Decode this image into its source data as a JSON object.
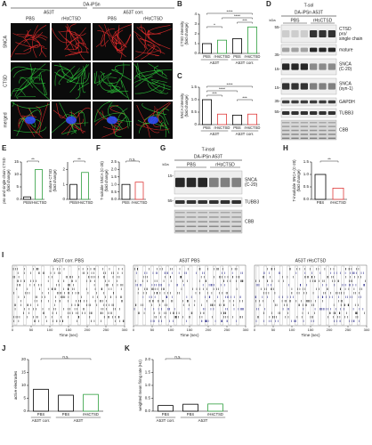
{
  "panel_a": {
    "letter": "A",
    "title": "DA-iPSn",
    "groups": [
      "A53T",
      "A53T corr."
    ],
    "columns": [
      "PBS",
      "rHsCTSD",
      "PBS",
      "rHsCTSD"
    ],
    "rows": [
      "SNCA",
      "CTSD",
      "merged"
    ]
  },
  "panel_b": {
    "letter": "B",
    "ylabel": [
      "CTSD intensity",
      "(fold change)"
    ],
    "ylim": [
      0,
      4
    ],
    "yticks": [
      0,
      1,
      2,
      3,
      4
    ],
    "categories": [
      "PBS",
      "rHsCTSD",
      "PBS",
      "rHsCTSD"
    ],
    "groups": [
      "A53T",
      "A53T corr."
    ],
    "values": [
      1.0,
      1.35,
      1.5,
      2.7
    ],
    "colors": [
      "#000000",
      "#2e9e3e",
      "#000000",
      "#2e9e3e"
    ],
    "significance": [
      "*",
      "****",
      "****",
      "***"
    ]
  },
  "panel_c": {
    "letter": "C",
    "ylabel": [
      "SNCA intensity",
      "(fold change)"
    ],
    "ylim": [
      0,
      1.5
    ],
    "yticks": [
      0,
      0.5,
      {
        "value": 1,
        "label": "1.0"
      },
      1.5
    ],
    "categories": [
      "PBS",
      "rHsCTSD",
      "PBS",
      "rHsCTSD"
    ],
    "groups": [
      "A53T",
      "A53T corr."
    ],
    "values": [
      1.0,
      0.42,
      0.38,
      0.42
    ],
    "colors": [
      "#000000",
      "#e03a3a",
      "#000000",
      "#e03a3a"
    ],
    "significance": [
      "****",
      "****",
      "***",
      "***"
    ]
  },
  "panel_d": {
    "letter": "D",
    "title": "T-sol",
    "subtitle": "DA-iPSn A53T",
    "columns": [
      "PBS",
      "rHsCTSD"
    ],
    "unit": "kDa",
    "markers": [
      "55-",
      "35-",
      "15-",
      "15-",
      "35-",
      "55-"
    ],
    "bands": [
      [
        "CTSD",
        "pro/",
        "single chain"
      ],
      [
        "mature"
      ],
      [
        "SNCA",
        "(C-20)"
      ],
      [
        "SNCA",
        "(syn-1)"
      ],
      [
        "GAPDH"
      ],
      [
        "TUBB3"
      ],
      [
        "CBB"
      ]
    ]
  },
  "panel_e": {
    "letter": "E",
    "charts": [
      {
        "ylabel": [
          "pro and single chain CTSD",
          "(fold change)"
        ],
        "ylim": [
          0,
          15
        ],
        "yticks": [
          0,
          5,
          10,
          15
        ],
        "categories": [
          "PBS",
          "rHsCTSD"
        ],
        "values": [
          1.0,
          12
        ],
        "colors": [
          "#000000",
          "#2e9e3e"
        ],
        "significance": [
          "**"
        ]
      },
      {
        "ylabel": [
          "mature CTSD",
          "(fold change)"
        ],
        "ylim": [
          0,
          2.5
        ],
        "yticks": [
          0,
          1,
          2
        ],
        "categories": [
          "PBS",
          "rHsCTSD"
        ],
        "values": [
          1.0,
          1.8
        ],
        "colors": [
          "#000000",
          "#2e9e3e"
        ],
        "significance": [
          "**"
        ]
      }
    ]
  },
  "panel_f": {
    "letter": "F",
    "ylabel": [
      "T-soluble SNCA (C-20)",
      "(fold change)"
    ],
    "ylim": [
      0,
      2.5
    ],
    "yticks": [
      {
        "value": 0,
        "label": "0.0"
      },
      0.5,
      {
        "value": 1,
        "label": "1.0"
      },
      1.5,
      {
        "value": 2,
        "label": "2.0"
      },
      2.5
    ],
    "categories": [
      "PBS",
      "rHsCTSD"
    ],
    "values": [
      1.0,
      1.15
    ],
    "colors": [
      "#000000",
      "#e03a3a"
    ],
    "significance": [
      "n.s."
    ]
  },
  "panel_g": {
    "letter": "G",
    "title": "T-insol",
    "subtitle": "DA-iPSn A53T",
    "columns": [
      "PBS",
      "rHsCTSD"
    ],
    "unit": "kDa",
    "markers": [
      "15-",
      "55-"
    ],
    "bands": [
      [
        "SNCA",
        "(C-20)"
      ],
      [
        "TUBB3"
      ],
      [
        "CBB"
      ]
    ]
  },
  "panel_h": {
    "letter": "H",
    "ylabel": [
      "T-insoluble SNCA (C-20)",
      "(fold change)"
    ],
    "ylim": [
      0,
      1.5
    ],
    "yticks": [
      {
        "value": 0,
        "label": "0.0"
      },
      0.5,
      {
        "value": 1,
        "label": "1.0"
      },
      1.5
    ],
    "categories": [
      "PBS",
      "rHsCTSD"
    ],
    "values": [
      1.0,
      0.45
    ],
    "colors": [
      "#000000",
      "#e03a3a"
    ],
    "significance": [
      "**"
    ]
  },
  "panel_i": {
    "letter": "I",
    "titles": [
      "A53T corr. PBS",
      "A53T PBS",
      "A53T rHsCTSD"
    ],
    "xlabel": "Time (sec)",
    "xlim": [
      0,
      300
    ],
    "xticks": [
      0,
      50,
      100,
      150,
      200,
      250,
      300
    ]
  },
  "panel_j": {
    "letter": "J",
    "ylabel": [
      "active electrodes"
    ],
    "ylim": [
      0,
      20
    ],
    "yticks": [
      0,
      5,
      10,
      15,
      20
    ],
    "categories": [
      "PBS",
      "PBS",
      "rHsCTSD"
    ],
    "groups": [
      "A53T corr.",
      "A53T"
    ],
    "values": [
      8.5,
      6.2,
      6.5
    ],
    "colors": [
      "#000000",
      "#000000",
      "#2e9e3e"
    ],
    "significance": [
      "n.s."
    ]
  },
  "panel_k": {
    "letter": "K",
    "ylabel": [
      "weighted mean firing rate (Hz)"
    ],
    "ylim": [
      0,
      2
    ],
    "yticks": [
      {
        "value": 0,
        "label": "0.0"
      },
      0.5,
      {
        "value": 1,
        "label": "1.0"
      },
      1.5,
      {
        "value": 2,
        "label": "2.0"
      }
    ],
    "categories": [
      "PBS",
      "PBS",
      "rHsCTSD"
    ],
    "groups": [
      "A53T corr.",
      "A53T"
    ],
    "values": [
      0.22,
      0.27,
      0.28
    ],
    "colors": [
      "#000000",
      "#000000",
      "#2e9e3e"
    ],
    "significance": [
      "n.s."
    ]
  }
}
